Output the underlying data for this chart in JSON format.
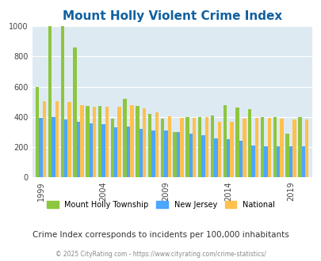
{
  "title": "Mount Holly Violent Crime Index",
  "years": [
    1999,
    2000,
    2001,
    2002,
    2003,
    2004,
    2005,
    2006,
    2007,
    2008,
    2009,
    2010,
    2011,
    2012,
    2013,
    2014,
    2015,
    2016,
    2017,
    2018,
    2019,
    2020
  ],
  "mount_holly": [
    600,
    1000,
    1000,
    860,
    470,
    470,
    390,
    520,
    470,
    420,
    390,
    300,
    400,
    400,
    410,
    480,
    460,
    450,
    400,
    400,
    290,
    400
  ],
  "new_jersey": [
    395,
    400,
    385,
    370,
    355,
    350,
    330,
    335,
    320,
    310,
    310,
    300,
    290,
    280,
    260,
    255,
    240,
    210,
    205,
    205,
    205,
    205
  ],
  "national": [
    505,
    505,
    500,
    480,
    465,
    465,
    465,
    475,
    455,
    430,
    405,
    395,
    395,
    400,
    370,
    370,
    390,
    395,
    395,
    390,
    385,
    385
  ],
  "colors": {
    "mount_holly": "#8dc63f",
    "new_jersey": "#4da6ff",
    "national": "#ffc04d"
  },
  "xlabel_ticks": [
    1999,
    2004,
    2009,
    2014,
    2019
  ],
  "ylim": [
    0,
    1000
  ],
  "yticks": [
    0,
    200,
    400,
    600,
    800,
    1000
  ],
  "background_color": "#deeaf1",
  "title_color": "#1060a0",
  "subtitle": "Crime Index corresponds to incidents per 100,000 inhabitants",
  "footer": "© 2025 CityRating.com - https://www.cityrating.com/crime-statistics/",
  "legend_labels": [
    "Mount Holly Township",
    "New Jersey",
    "National"
  ],
  "bar_width": 0.28
}
